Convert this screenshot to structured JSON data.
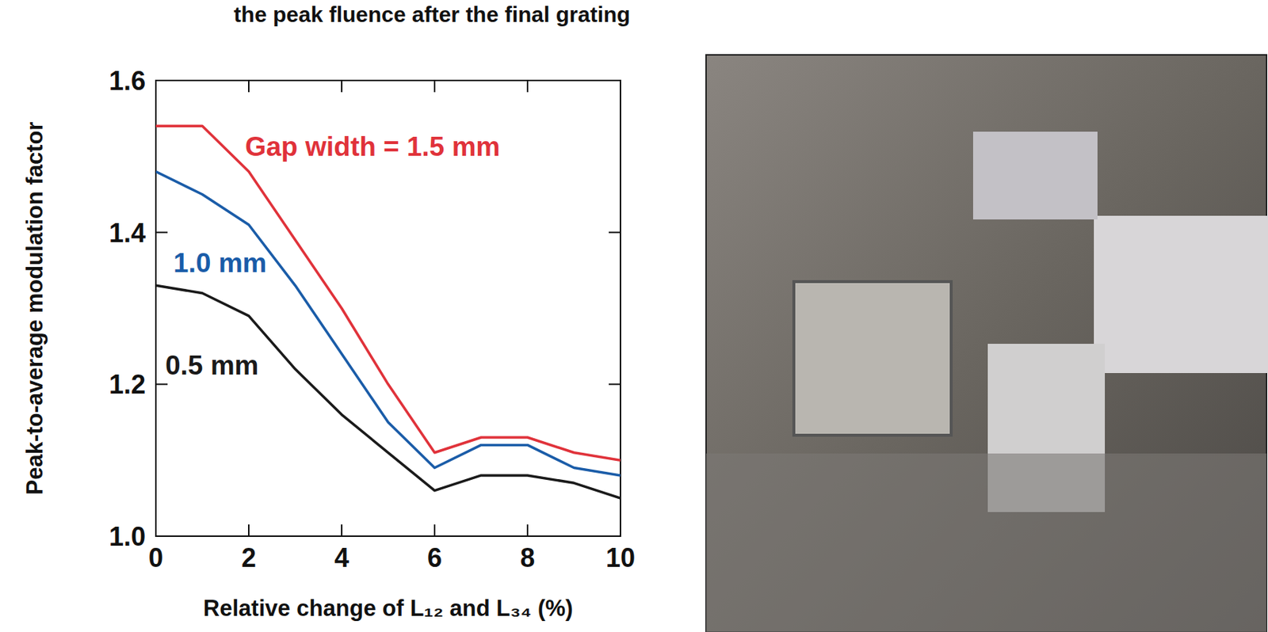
{
  "chart_data": {
    "type": "line",
    "title": "the peak fluence after the final grating",
    "x_label": "Relative change of L₁₂ and L₃₄ (%)",
    "y_label": "Peak-to-average modulation factor",
    "x": [
      0,
      1,
      2,
      3,
      4,
      5,
      6,
      7,
      8,
      9,
      10
    ],
    "series": [
      {
        "name": "Gap width = 1.5 mm",
        "color": "#e0323a",
        "values": [
          1.54,
          1.54,
          1.48,
          1.39,
          1.3,
          1.2,
          1.11,
          1.13,
          1.13,
          1.11,
          1.1
        ]
      },
      {
        "name": "1.0 mm",
        "color": "#1a5ca8",
        "values": [
          1.48,
          1.45,
          1.41,
          1.33,
          1.24,
          1.15,
          1.09,
          1.12,
          1.12,
          1.09,
          1.08
        ]
      },
      {
        "name": "0.5 mm",
        "color": "#1a1a1a",
        "values": [
          1.33,
          1.32,
          1.29,
          1.22,
          1.16,
          1.11,
          1.06,
          1.08,
          1.08,
          1.07,
          1.05
        ]
      }
    ],
    "xlim": [
      0,
      10
    ],
    "ylim": [
      1,
      1.6
    ],
    "xticks": [
      0,
      2,
      4,
      6,
      8,
      10
    ],
    "yticks": [
      {
        "value": 1,
        "label": "1.0"
      },
      {
        "value": 1.2,
        "label": "1.2"
      },
      {
        "value": 1.4,
        "label": "1.4"
      },
      {
        "value": 1.6,
        "label": "1.6"
      }
    ],
    "grid": false
  }
}
